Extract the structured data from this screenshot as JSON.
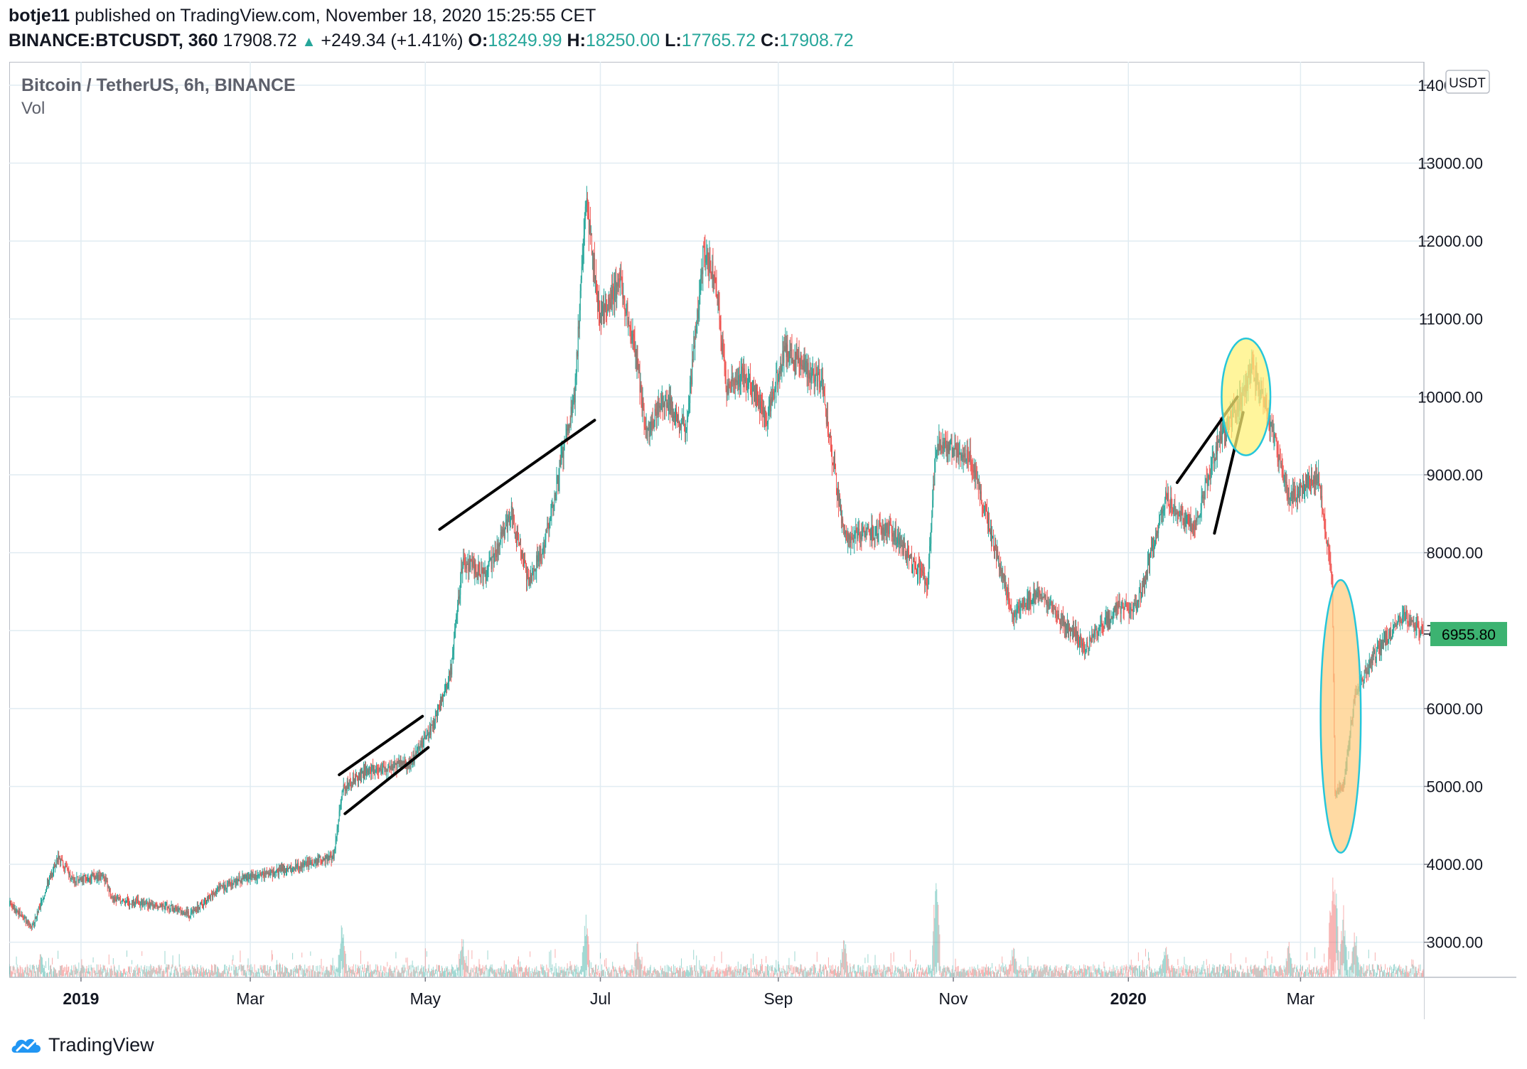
{
  "header": {
    "user": "botje11",
    "published": " published on TradingView.com, November 18, 2020 15:25:55 CET",
    "symbol": "BINANCE:BTCUSDT, 360",
    "last": "17908.72",
    "change_arrow": "▲",
    "change": "+249.34 (+1.41%)",
    "o_label": "O:",
    "o_value": "18249.99",
    "h_label": "H:",
    "h_value": "18250.00",
    "l_label": "L:",
    "l_value": "17765.72",
    "c_label": "C:",
    "c_value": "17908.72"
  },
  "legend": {
    "title": "Bitcoin / TetherUS, 6h, BINANCE",
    "volume": "Vol"
  },
  "footer": {
    "brand": "TradingView",
    "logo_icon": "tradingview-cloud-icon"
  },
  "colors": {
    "up": "#26a69a",
    "down": "#ef5350",
    "grid": "#e1ecf2",
    "price_tag": "#3cb371",
    "yellow_zone": "#fff176",
    "orange_zone": "#ffcc80",
    "zone_border": "#26c6da"
  },
  "chart_data": {
    "type": "candlestick",
    "title": "Bitcoin / TetherUS, 6h, BINANCE",
    "currency_badge": "USDT",
    "y_ticks": [
      "14000.00",
      "13000.00",
      "12000.00",
      "11000.00",
      "10000.00",
      "9000.00",
      "8000.00",
      "7000.00",
      "6000.00",
      "5000.00",
      "4000.00",
      "3000.00"
    ],
    "y_range": [
      2550,
      14300
    ],
    "x_range": [
      "2018-12-07",
      "2020-04-13"
    ],
    "x_ticks": [
      {
        "label": "2019",
        "date": "2019-01-01",
        "bold": true
      },
      {
        "label": "Mar",
        "date": "2019-03-01",
        "bold": false
      },
      {
        "label": "May",
        "date": "2019-05-01",
        "bold": false
      },
      {
        "label": "Jul",
        "date": "2019-07-01",
        "bold": false
      },
      {
        "label": "Sep",
        "date": "2019-09-01",
        "bold": false
      },
      {
        "label": "Nov",
        "date": "2019-11-01",
        "bold": false
      },
      {
        "label": "2020",
        "date": "2020-01-01",
        "bold": true
      },
      {
        "label": "Mar",
        "date": "2020-03-01",
        "bold": false
      }
    ],
    "current_price": "6955.80",
    "price_path": [
      [
        "2018-12-07",
        3500
      ],
      [
        "2018-12-15",
        3200
      ],
      [
        "2018-12-24",
        4100
      ],
      [
        "2018-12-29",
        3800
      ],
      [
        "2019-01-09",
        3850
      ],
      [
        "2019-01-12",
        3550
      ],
      [
        "2019-02-01",
        3450
      ],
      [
        "2019-02-08",
        3350
      ],
      [
        "2019-02-17",
        3650
      ],
      [
        "2019-02-24",
        3800
      ],
      [
        "2019-03-10",
        3900
      ],
      [
        "2019-03-30",
        4100
      ],
      [
        "2019-04-02",
        4950
      ],
      [
        "2019-04-10",
        5200
      ],
      [
        "2019-04-26",
        5300
      ],
      [
        "2019-05-04",
        5800
      ],
      [
        "2019-05-10",
        6500
      ],
      [
        "2019-05-14",
        7900
      ],
      [
        "2019-05-22",
        7700
      ],
      [
        "2019-05-31",
        8500
      ],
      [
        "2019-06-06",
        7600
      ],
      [
        "2019-06-12",
        8200
      ],
      [
        "2019-06-22",
        10000
      ],
      [
        "2019-06-26",
        12500
      ],
      [
        "2019-07-01",
        11000
      ],
      [
        "2019-07-08",
        11500
      ],
      [
        "2019-07-14",
        10400
      ],
      [
        "2019-07-17",
        9500
      ],
      [
        "2019-07-23",
        10000
      ],
      [
        "2019-07-31",
        9600
      ],
      [
        "2019-08-06",
        11900
      ],
      [
        "2019-08-10",
        11500
      ],
      [
        "2019-08-14",
        10100
      ],
      [
        "2019-08-20",
        10300
      ],
      [
        "2019-08-28",
        9700
      ],
      [
        "2019-09-03",
        10600
      ],
      [
        "2019-09-16",
        10200
      ],
      [
        "2019-09-24",
        8200
      ],
      [
        "2019-10-10",
        8300
      ],
      [
        "2019-10-23",
        7600
      ],
      [
        "2019-10-26",
        9400
      ],
      [
        "2019-11-07",
        9200
      ],
      [
        "2019-11-22",
        7200
      ],
      [
        "2019-11-30",
        7500
      ],
      [
        "2019-12-17",
        6800
      ],
      [
        "2019-12-28",
        7300
      ],
      [
        "2020-01-04",
        7300
      ],
      [
        "2020-01-14",
        8700
      ],
      [
        "2020-01-24",
        8300
      ],
      [
        "2020-02-01",
        9400
      ],
      [
        "2020-02-10",
        10000
      ],
      [
        "2020-02-13",
        10400
      ],
      [
        "2020-02-20",
        9600
      ],
      [
        "2020-02-26",
        8700
      ],
      [
        "2020-03-07",
        9000
      ],
      [
        "2020-03-12",
        7700
      ],
      [
        "2020-03-13",
        4900
      ],
      [
        "2020-03-16",
        5000
      ],
      [
        "2020-03-20",
        6200
      ],
      [
        "2020-03-27",
        6700
      ],
      [
        "2020-04-06",
        7200
      ],
      [
        "2020-04-13",
        6955
      ]
    ],
    "volume_range": [
      0,
      9000
    ],
    "volume_spikes": [
      [
        "2018-12-18",
        2000
      ],
      [
        "2019-04-02",
        4800
      ],
      [
        "2019-05-14",
        3400
      ],
      [
        "2019-06-26",
        5200
      ],
      [
        "2019-07-14",
        3000
      ],
      [
        "2019-09-24",
        3600
      ],
      [
        "2019-10-26",
        8800
      ],
      [
        "2019-11-22",
        2600
      ],
      [
        "2020-01-14",
        2800
      ],
      [
        "2020-02-26",
        3000
      ],
      [
        "2020-03-12",
        8800
      ],
      [
        "2020-03-13",
        9000
      ],
      [
        "2020-03-16",
        5800
      ],
      [
        "2020-03-20",
        4200
      ]
    ],
    "annotations": [
      {
        "kind": "trendline",
        "points": [
          [
            "2019-04-01",
            5150
          ],
          [
            "2019-04-30",
            5900
          ]
        ]
      },
      {
        "kind": "trendline",
        "points": [
          [
            "2019-04-03",
            4650
          ],
          [
            "2019-05-02",
            5500
          ]
        ]
      },
      {
        "kind": "trendline",
        "points": [
          [
            "2019-05-06",
            8300
          ],
          [
            "2019-06-29",
            9700
          ]
        ]
      },
      {
        "kind": "trendline",
        "points": [
          [
            "2020-01-18",
            8900
          ],
          [
            "2020-02-08",
            10000
          ]
        ]
      },
      {
        "kind": "trendline",
        "points": [
          [
            "2020-01-31",
            8250
          ],
          [
            "2020-02-10",
            9800
          ]
        ]
      },
      {
        "kind": "ellipse",
        "name": "yellow-zone",
        "center": [
          "2020-02-11",
          10000
        ],
        "rx_days": 8.5,
        "ry_value": 750
      },
      {
        "kind": "ellipse",
        "name": "orange-zone",
        "center": [
          "2020-03-15",
          5900
        ],
        "rx_days": 7,
        "ry_value": 1750
      }
    ]
  }
}
